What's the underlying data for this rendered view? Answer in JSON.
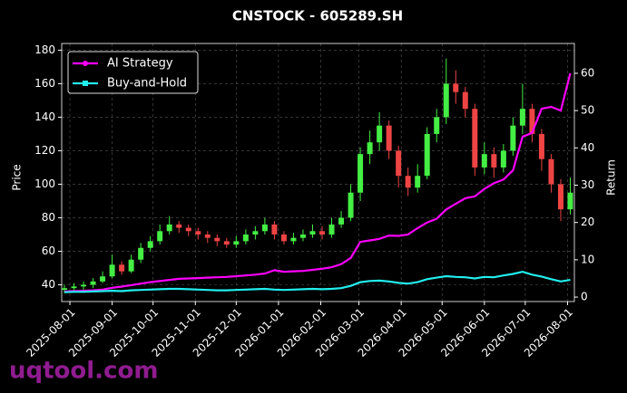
{
  "chart_data": {
    "type": "candlestick",
    "title": "CNSTOCK - 605289.SH",
    "ylabel": "Price",
    "y2label": "Return",
    "watermark": "uqtool.com",
    "up_color": "#44ee44",
    "down_color": "#ee4444",
    "grid": true,
    "legend": "upper left",
    "x": [
      "2025-07-28",
      "2025-08-04",
      "2025-08-11",
      "2025-08-18",
      "2025-08-25",
      "2025-09-01",
      "2025-09-08",
      "2025-09-15",
      "2025-09-22",
      "2025-09-29",
      "2025-10-06",
      "2025-10-13",
      "2025-10-20",
      "2025-10-27",
      "2025-11-03",
      "2025-11-10",
      "2025-11-17",
      "2025-11-24",
      "2025-12-01",
      "2025-12-08",
      "2025-12-15",
      "2025-12-22",
      "2025-12-29",
      "2026-01-05",
      "2026-01-12",
      "2026-01-19",
      "2026-01-26",
      "2026-02-02",
      "2026-02-09",
      "2026-02-16",
      "2026-02-23",
      "2026-03-02",
      "2026-03-09",
      "2026-03-16",
      "2026-03-23",
      "2026-03-30",
      "2026-04-06",
      "2026-04-13",
      "2026-04-20",
      "2026-04-27",
      "2026-05-04",
      "2026-05-11",
      "2026-05-18",
      "2026-05-25",
      "2026-06-01",
      "2026-06-08",
      "2026-06-15",
      "2026-06-22",
      "2026-06-29",
      "2026-07-06",
      "2026-07-13",
      "2026-07-20",
      "2026-07-27",
      "2026-08-03"
    ],
    "open": [
      37,
      38,
      39,
      40,
      42,
      45,
      52,
      48,
      55,
      62,
      66,
      72,
      76,
      74,
      72,
      70,
      68,
      66,
      64,
      66,
      70,
      72,
      76,
      70,
      66,
      68,
      70,
      72,
      70,
      76,
      80,
      95,
      118,
      125,
      135,
      120,
      105,
      98,
      105,
      130,
      140,
      160,
      155,
      145,
      110,
      118,
      110,
      120,
      135,
      145,
      130,
      115,
      100,
      85
    ],
    "high": [
      40,
      41,
      42,
      44,
      48,
      58,
      54,
      58,
      65,
      69,
      76,
      81,
      78,
      76,
      74,
      72,
      70,
      68,
      69,
      73,
      75,
      80,
      78,
      72,
      71,
      73,
      76,
      75,
      80,
      84,
      100,
      122,
      132,
      143,
      138,
      123,
      110,
      112,
      134,
      145,
      175,
      168,
      158,
      148,
      125,
      122,
      124,
      140,
      160,
      148,
      133,
      118,
      103,
      104
    ],
    "low": [
      35,
      36,
      37,
      38,
      41,
      44,
      46,
      47,
      53,
      60,
      64,
      70,
      71,
      69,
      67,
      65,
      63,
      62,
      62,
      64,
      67,
      70,
      67,
      64,
      64,
      66,
      68,
      67,
      68,
      74,
      78,
      90,
      112,
      120,
      115,
      98,
      93,
      95,
      103,
      125,
      136,
      148,
      140,
      105,
      106,
      104,
      107,
      117,
      130,
      125,
      108,
      95,
      78,
      82
    ],
    "close": [
      38,
      39,
      40,
      42,
      45,
      52,
      48,
      55,
      62,
      66,
      72,
      76,
      74,
      72,
      70,
      68,
      66,
      64,
      66,
      70,
      72,
      76,
      70,
      66,
      68,
      70,
      72,
      70,
      76,
      80,
      95,
      118,
      125,
      135,
      120,
      105,
      98,
      105,
      130,
      140,
      160,
      155,
      145,
      110,
      118,
      110,
      120,
      135,
      145,
      130,
      115,
      100,
      85,
      95
    ],
    "series": [
      {
        "name": "AI Strategy",
        "color": "#ff00ff",
        "axis": "y2",
        "marker": "circle",
        "values": [
          1.5,
          1.6,
          1.7,
          1.8,
          2.0,
          2.5,
          2.8,
          3.2,
          3.6,
          4.0,
          4.3,
          4.6,
          4.9,
          5.0,
          5.1,
          5.2,
          5.3,
          5.4,
          5.6,
          5.8,
          6.0,
          6.3,
          7.2,
          6.8,
          6.9,
          7.0,
          7.3,
          7.6,
          8.0,
          8.8,
          10.5,
          14.8,
          15.2,
          15.6,
          16.5,
          16.4,
          16.8,
          18.5,
          20.0,
          21.0,
          23.5,
          25.0,
          26.5,
          27.0,
          29.0,
          30.5,
          31.5,
          34.0,
          43.0,
          44.0,
          50.5,
          51.0,
          50.0,
          60.0
        ]
      },
      {
        "name": "Buy-and-Hold",
        "color": "#22eeee",
        "axis": "y2",
        "marker": "square",
        "values": [
          1.3,
          1.4,
          1.4,
          1.5,
          1.6,
          1.7,
          1.6,
          1.8,
          1.9,
          2.0,
          2.1,
          2.2,
          2.2,
          2.1,
          2.0,
          1.9,
          1.8,
          1.8,
          1.9,
          2.0,
          2.1,
          2.2,
          2.0,
          1.9,
          2.0,
          2.1,
          2.2,
          2.1,
          2.2,
          2.4,
          3.0,
          4.0,
          4.3,
          4.4,
          4.2,
          3.8,
          3.6,
          4.0,
          4.8,
          5.2,
          5.6,
          5.4,
          5.3,
          5.0,
          5.4,
          5.3,
          5.8,
          6.2,
          6.8,
          6.0,
          5.5,
          4.8,
          4.2,
          4.6
        ]
      }
    ],
    "xlim": [
      "2025-07-26",
      "2026-08-06"
    ],
    "xticks": [
      "2025-08-01",
      "2025-09-01",
      "2025-10-01",
      "2025-11-01",
      "2025-12-01",
      "2026-01-01",
      "2026-02-01",
      "2026-03-01",
      "2026-04-01",
      "2026-05-01",
      "2026-06-01",
      "2026-07-01",
      "2026-08-01"
    ],
    "ylim": [
      30,
      184
    ],
    "yticks": [
      40,
      60,
      80,
      100,
      120,
      140,
      160,
      180
    ],
    "y2lim": [
      -1.2,
      68
    ],
    "y2ticks": [
      0,
      10,
      20,
      30,
      40,
      50,
      60
    ]
  }
}
